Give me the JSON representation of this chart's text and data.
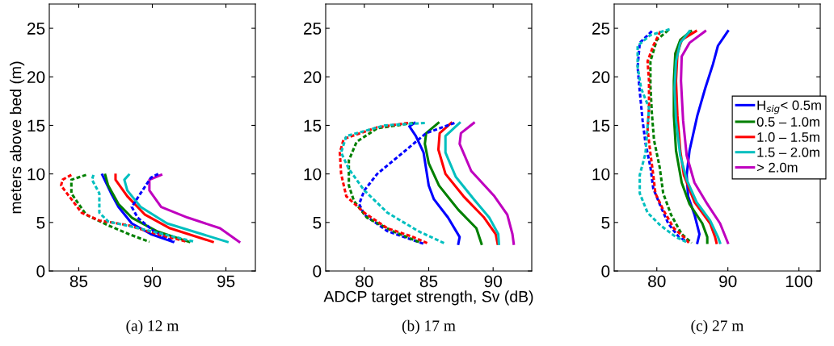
{
  "chart_data": [
    {
      "type": "line",
      "ylabel": "meters above bed (m)",
      "annotations": [
        "(a) 12 m"
      ],
      "xlim": [
        83,
        97
      ],
      "xticks": [
        85,
        90,
        95
      ],
      "ylim": [
        0,
        27.5
      ],
      "yticks": [
        0,
        5,
        10,
        15,
        20,
        25
      ],
      "grid": false,
      "legend": false,
      "series": [
        {
          "color": "#0000ff",
          "line_style": "solid",
          "x": [
            86.6,
            87.2,
            87.7,
            88.6,
            89.9,
            91.4
          ],
          "values": [
            9.9,
            8.0,
            6.6,
            4.9,
            3.8,
            3.0
          ]
        },
        {
          "color": "#008000",
          "line_style": "solid",
          "x": [
            86.8,
            87.0,
            87.7,
            88.6,
            90.3,
            92.5
          ],
          "values": [
            9.9,
            8.8,
            6.9,
            5.5,
            4.1,
            3.0
          ]
        },
        {
          "color": "#ff0000",
          "line_style": "solid",
          "x": [
            87.5,
            87.5,
            88.3,
            89.5,
            91.2,
            94.1
          ],
          "values": [
            9.9,
            9.4,
            7.7,
            5.8,
            4.4,
            3.0
          ]
        },
        {
          "color": "#00bfbf",
          "line_style": "solid",
          "x": [
            88.4,
            88.1,
            88.3,
            89.2,
            91.0,
            95.1
          ],
          "values": [
            9.9,
            9.4,
            8.3,
            6.6,
            4.9,
            3.0
          ]
        },
        {
          "color": "#bf00bf",
          "line_style": "solid",
          "x": [
            90.6,
            89.8,
            89.8,
            90.6,
            92.4,
            94.6,
            95.9
          ],
          "values": [
            9.9,
            9.4,
            8.3,
            6.6,
            5.5,
            4.4,
            3.0
          ]
        },
        {
          "color": "#0000ff",
          "line_style": "dashed",
          "x": [
            90.4,
            89.9,
            89.2,
            88.6,
            89.0,
            90.1,
            91.5
          ],
          "values": [
            10.0,
            9.6,
            8.0,
            6.6,
            5.5,
            4.1,
            3.0
          ]
        },
        {
          "color": "#008000",
          "line_style": "dashed",
          "x": [
            85.5,
            84.5,
            84.5,
            85.5,
            87.0,
            88.4,
            89.8
          ],
          "values": [
            9.9,
            9.4,
            8.0,
            5.8,
            4.7,
            3.8,
            3.0
          ]
        },
        {
          "color": "#ff0000",
          "line_style": "dashed",
          "x": [
            84.5,
            83.9,
            83.8,
            84.5,
            85.2,
            86.4,
            88.4,
            90.3,
            92.4
          ],
          "values": [
            9.9,
            9.4,
            8.8,
            7.4,
            6.0,
            5.2,
            4.7,
            3.8,
            3.0
          ]
        },
        {
          "color": "#00bfbf",
          "line_style": "dashed",
          "x": [
            86.0,
            85.9,
            86.4,
            86.4,
            87.0,
            88.8,
            91.0,
            92.9
          ],
          "values": [
            9.9,
            9.4,
            8.0,
            6.0,
            5.1,
            4.5,
            3.7,
            3.0
          ]
        }
      ]
    },
    {
      "type": "line",
      "xlabel": "ADCP target strength, Sv (dB)",
      "annotations": [
        "(b) 17 m"
      ],
      "xlim": [
        77,
        93
      ],
      "xticks": [
        80,
        85,
        90
      ],
      "ylim": [
        0,
        27.5
      ],
      "yticks": [
        0,
        5,
        10,
        15,
        20,
        25
      ],
      "grid": false,
      "legend": false,
      "series": [
        {
          "color": "#0000ff",
          "line_style": "solid",
          "x": [
            83.9,
            83.5,
            84.0,
            84.6,
            84.8,
            85.0,
            85.4,
            86.5,
            87.4,
            87.3
          ],
          "values": [
            15.25,
            14.9,
            13.9,
            12.2,
            10.5,
            8.8,
            7.4,
            5.5,
            3.5,
            2.8
          ]
        },
        {
          "color": "#008000",
          "line_style": "solid",
          "x": [
            85.75,
            84.8,
            84.7,
            85.0,
            85.8,
            87.3,
            88.7,
            89.1
          ],
          "values": [
            15.25,
            14.2,
            13.1,
            11.1,
            8.8,
            6.3,
            4.4,
            2.8
          ]
        },
        {
          "color": "#ff0000",
          "line_style": "solid",
          "x": [
            86.75,
            85.85,
            85.75,
            86.3,
            87.7,
            89.3,
            90.2,
            90.35
          ],
          "values": [
            15.25,
            14.2,
            12.5,
            10.0,
            7.7,
            5.5,
            3.8,
            2.8
          ]
        },
        {
          "color": "#00bfbf",
          "line_style": "solid",
          "x": [
            87.4,
            86.3,
            86.3,
            87.1,
            88.5,
            89.7,
            90.4,
            90.45
          ],
          "values": [
            15.25,
            13.9,
            12.2,
            9.7,
            7.4,
            5.5,
            3.8,
            2.8
          ]
        },
        {
          "color": "#bf00bf",
          "line_style": "solid",
          "x": [
            88.5,
            87.5,
            87.4,
            88.3,
            90.1,
            91.1,
            91.5,
            91.6
          ],
          "values": [
            15.25,
            14.2,
            13.1,
            10.3,
            7.7,
            5.8,
            3.8,
            2.8
          ]
        },
        {
          "color": "#0000ff",
          "line_style": "dashed",
          "x": [
            87.0,
            84.8,
            83.0,
            81.0,
            80.0,
            79.6,
            80.0,
            81.8,
            84.6
          ],
          "values": [
            15.25,
            14.2,
            12.2,
            10.0,
            8.3,
            6.9,
            5.8,
            4.1,
            2.8
          ]
        },
        {
          "color": "#008000",
          "line_style": "dashed",
          "x": [
            83.8,
            81.0,
            79.4,
            78.8,
            78.8,
            79.2,
            80.2,
            82.2,
            84.4
          ],
          "values": [
            15.25,
            14.7,
            13.3,
            11.4,
            8.8,
            7.2,
            5.5,
            4.1,
            2.9
          ]
        },
        {
          "color": "#ff0000",
          "line_style": "dashed",
          "x": [
            83.4,
            81.0,
            78.4,
            78.1,
            78.2,
            78.6,
            80.0,
            81.8,
            83.8,
            85.0
          ],
          "values": [
            15.25,
            14.8,
            13.6,
            12.2,
            10.0,
            7.7,
            6.0,
            4.4,
            3.5,
            2.8
          ]
        },
        {
          "color": "#00bfbf",
          "line_style": "dashed",
          "x": [
            84.7,
            81.6,
            78.6,
            78.2,
            78.8,
            80.0,
            81.8,
            84.2,
            86.3
          ],
          "values": [
            15.25,
            15.0,
            13.9,
            12.2,
            10.5,
            8.3,
            6.0,
            4.1,
            2.8
          ]
        }
      ]
    },
    {
      "type": "line",
      "annotations": [
        "(c) 27 m"
      ],
      "xlim": [
        74,
        103
      ],
      "xticks": [
        80,
        90,
        100
      ],
      "ylim": [
        0,
        27.5
      ],
      "yticks": [
        0,
        5,
        10,
        15,
        20,
        25
      ],
      "grid": false,
      "legend": "right",
      "series": [
        {
          "name": "H$_{sig}$< 0.5m",
          "color": "#0000ff",
          "line_style": "solid",
          "x": [
            90.0,
            88.6,
            87.9,
            86.8,
            85.7,
            84.6,
            84.2,
            84.4,
            85.3,
            86.0,
            85.7
          ],
          "values": [
            24.7,
            23.2,
            21.3,
            18.8,
            16.0,
            12.4,
            9.9,
            7.7,
            5.8,
            3.8,
            2.9
          ]
        },
        {
          "name": "0.5 – 1.0m",
          "color": "#008000",
          "line_style": "solid",
          "x": [
            84.8,
            83.3,
            82.6,
            82.4,
            82.4,
            82.7,
            83.5,
            84.6,
            86.4,
            87.1,
            87.1
          ],
          "values": [
            24.7,
            23.8,
            22.4,
            19.6,
            16.0,
            12.4,
            9.1,
            6.9,
            4.9,
            3.5,
            2.9
          ]
        },
        {
          "name": "1.0 – 1.5m",
          "color": "#ff0000",
          "line_style": "solid",
          "x": [
            85.5,
            83.5,
            82.9,
            82.7,
            82.9,
            83.3,
            83.8,
            85.3,
            87.5,
            88.2,
            88.4
          ],
          "values": [
            24.7,
            23.8,
            22.4,
            19.6,
            16.0,
            12.4,
            9.9,
            7.1,
            4.9,
            3.5,
            2.9
          ]
        },
        {
          "name": "1.5 – 2.0m",
          "color": "#00bfbf",
          "line_style": "solid",
          "x": [
            84.6,
            83.3,
            82.7,
            82.5,
            82.7,
            83.3,
            84.2,
            85.6,
            87.5,
            88.6,
            88.9
          ],
          "values": [
            24.7,
            23.5,
            21.6,
            18.8,
            15.5,
            11.9,
            9.4,
            7.1,
            5.2,
            3.5,
            2.9
          ]
        },
        {
          "name": "> 2.0m",
          "color": "#bf00bf",
          "line_style": "solid",
          "x": [
            86.8,
            84.6,
            83.5,
            83.4,
            83.7,
            84.2,
            85.3,
            87.1,
            88.9,
            90.0
          ],
          "values": [
            24.7,
            23.5,
            22.1,
            19.6,
            15.5,
            11.9,
            9.1,
            6.9,
            4.9,
            2.9
          ]
        },
        {
          "color": "#0000ff",
          "line_style": "dashed",
          "x": [
            79.3,
            77.6,
            77.3,
            77.6,
            78.0,
            78.4,
            79.1,
            79.5,
            80.4,
            81.6,
            83.1,
            84.1
          ],
          "values": [
            24.7,
            23.5,
            21.0,
            18.5,
            15.5,
            13.2,
            10.7,
            8.5,
            6.9,
            4.9,
            3.5,
            3.1
          ]
        },
        {
          "color": "#008000",
          "line_style": "dashed",
          "x": [
            81.6,
            80.0,
            79.1,
            79.1,
            79.3,
            79.6,
            80.4,
            80.9,
            82.0,
            83.5,
            84.9
          ],
          "values": [
            24.8,
            23.8,
            21.6,
            19.1,
            16.3,
            13.5,
            10.7,
            8.0,
            5.8,
            3.8,
            2.9
          ]
        },
        {
          "color": "#ff0000",
          "line_style": "dashed",
          "x": [
            80.5,
            79.5,
            78.7,
            78.9,
            78.9,
            78.7,
            79.1,
            79.5,
            79.8,
            80.9,
            82.4,
            83.8,
            84.5
          ],
          "values": [
            24.7,
            23.2,
            21.6,
            19.6,
            16.8,
            14.6,
            12.1,
            9.9,
            8.0,
            6.3,
            4.4,
            3.5,
            2.9
          ]
        },
        {
          "color": "#00bfbf",
          "line_style": "dashed",
          "x": [
            81.8,
            79.1,
            77.3,
            77.3,
            77.8,
            78.9,
            78.7,
            78.4,
            77.6,
            77.6,
            78.7,
            80.5,
            82.7,
            84.4
          ],
          "values": [
            24.9,
            24.3,
            23.2,
            21.0,
            18.8,
            16.8,
            14.9,
            12.1,
            9.9,
            8.0,
            6.0,
            4.7,
            3.5,
            2.9
          ]
        }
      ]
    }
  ]
}
